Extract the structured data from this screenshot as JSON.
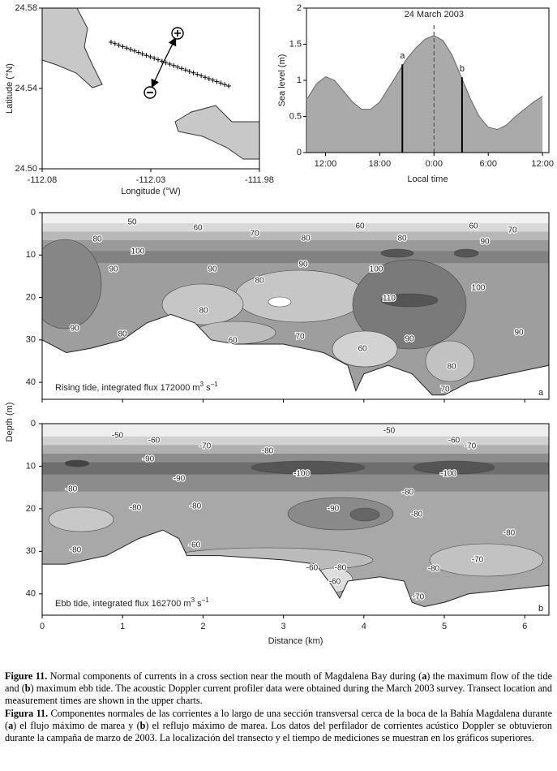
{
  "chart_data": [
    {
      "type": "map",
      "xlabel": "Longitude (°W)",
      "ylabel": "Latitude (°N)",
      "xlim": [
        -112.08,
        -111.98
      ],
      "xticks": [
        -112.08,
        -112.03,
        -111.98
      ],
      "ylim": [
        24.5,
        24.58
      ],
      "yticks": [
        {
          "value": 24.5,
          "label": "24.50"
        },
        24.54,
        24.58
      ]
    },
    {
      "type": "area",
      "title": "24 March 2003",
      "xlabel": "Local time",
      "ylabel": "Sea level (m)",
      "x": [
        10,
        11,
        12,
        13,
        14,
        15,
        16,
        17,
        18,
        19,
        20,
        21,
        22,
        23,
        24,
        25,
        26,
        27,
        28,
        29,
        30,
        31,
        32,
        33,
        34,
        35,
        36
      ],
      "values": [
        0.75,
        0.95,
        1.05,
        1.0,
        0.85,
        0.7,
        0.6,
        0.6,
        0.7,
        0.9,
        1.1,
        1.3,
        1.45,
        1.57,
        1.62,
        1.55,
        1.35,
        1.05,
        0.75,
        0.5,
        0.35,
        0.32,
        0.38,
        0.5,
        0.6,
        0.7,
        0.78
      ],
      "color": "#aaaaaa",
      "xlim": [
        9.9,
        36.7
      ],
      "xticks": [
        {
          "value": 12,
          "label": "12:00"
        },
        {
          "value": 18,
          "label": "18:00"
        },
        {
          "value": 24,
          "label": "0:00"
        },
        {
          "value": 30,
          "label": "6:00"
        },
        {
          "value": 36,
          "label": "12:00"
        }
      ],
      "ylim": [
        0,
        2
      ],
      "yticks": [
        0,
        0.5,
        1,
        1.5,
        2
      ],
      "markers": [
        {
          "label": "a",
          "x": 20.5
        },
        {
          "label": "b",
          "x": 27.1
        }
      ],
      "reference_x": 24
    },
    {
      "type": "contour",
      "panel": "a",
      "ylabel": "Depth (m)",
      "xlim": [
        0,
        6.3
      ],
      "xticks": [
        0,
        1,
        2,
        3,
        4,
        5,
        6
      ],
      "ylim": [
        0,
        44
      ],
      "yticks": [
        0,
        10,
        20,
        30,
        40
      ],
      "note_parts": [
        "Rising tide, integrated flux 172000 m",
        "3",
        " s",
        "−1"
      ],
      "contour_labels": [
        50,
        60,
        70,
        60,
        60,
        70,
        80,
        80,
        80,
        90,
        100,
        100,
        90,
        90,
        90,
        80,
        100,
        110,
        80,
        90,
        80,
        60,
        70,
        90,
        90,
        60,
        80,
        70
      ]
    },
    {
      "type": "contour",
      "panel": "b",
      "xlabel": "Distance (km)",
      "xlim": [
        0,
        6.3
      ],
      "xticks": [
        0,
        1,
        2,
        3,
        4,
        5,
        6
      ],
      "ylim": [
        0,
        45
      ],
      "yticks": [
        0,
        10,
        20,
        30,
        40
      ],
      "note_parts": [
        "Ebb tide, integrated flux 162700 m",
        "3",
        " s",
        "−1"
      ],
      "contour_labels": [
        -50,
        -50,
        -60,
        -60,
        -70,
        -70,
        -80,
        -90,
        -100,
        -100,
        -90,
        -80,
        -80,
        -80,
        -80,
        -90,
        -80,
        -80,
        -80,
        -60,
        -70,
        -60,
        -80,
        -80,
        -60,
        -70
      ]
    }
  ],
  "caption": {
    "english": [
      "Figure 11.",
      " Normal components of currents in a cross section near the mouth of Magdalena Bay during (",
      "a",
      ") the maximum flow of the tide and (",
      "b",
      ") maximum ebb tide. The acoustic Doppler current profiler data were obtained during the March 2003 survey. Transect location and measurement times are shown in the upper charts."
    ],
    "spanish": [
      "Figura 11.",
      " Componentes normales de las corrientes a lo largo de una sección transversal cerca de la boca de la Bahía Magdalena durante (",
      "a",
      ") el flujo máximo de marea y (",
      "b",
      ") el reflujo máximo de marea. Los datos del perfilador de corrientes acústico Doppler se obtuvieron durante la campaña de marzo de 2003. La localización del transecto y el tiempo de mediciones se muestran en los gráficos superiores."
    ]
  }
}
